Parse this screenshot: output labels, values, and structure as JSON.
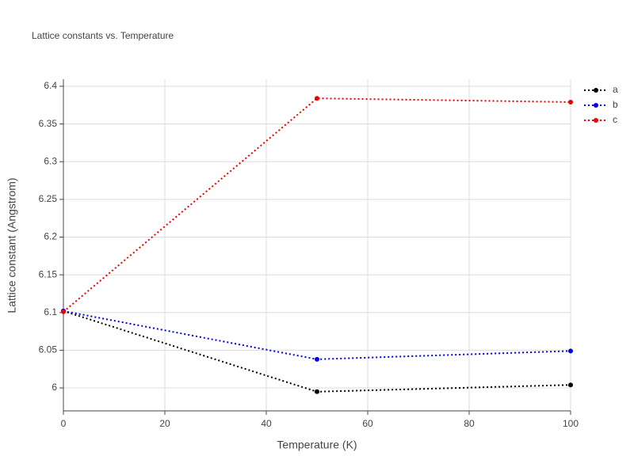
{
  "chart_data": {
    "type": "line",
    "title": "Lattice constants vs. Temperature",
    "x_label": "Temperature (K)",
    "y_label": "Lattice constant (Angstrom)",
    "x": [
      0,
      50,
      100
    ],
    "series": [
      {
        "name": "a",
        "color": "#000000",
        "values": [
          6.102,
          5.995,
          6.004
        ]
      },
      {
        "name": "b",
        "color": "#0000ee",
        "values": [
          6.102,
          6.038,
          6.049
        ]
      },
      {
        "name": "c",
        "color": "#ee0000",
        "values": [
          6.101,
          6.384,
          6.379
        ]
      }
    ],
    "xlim": [
      0,
      100
    ],
    "xticks": [
      0,
      20,
      40,
      60,
      80,
      100
    ],
    "ylim": [
      5.9696,
      6.4094
    ],
    "yticks": [
      6,
      6.05,
      6.1,
      6.15,
      6.2,
      6.25,
      6.3,
      6.35,
      6.4
    ],
    "grid": true,
    "legend": "top-right"
  }
}
